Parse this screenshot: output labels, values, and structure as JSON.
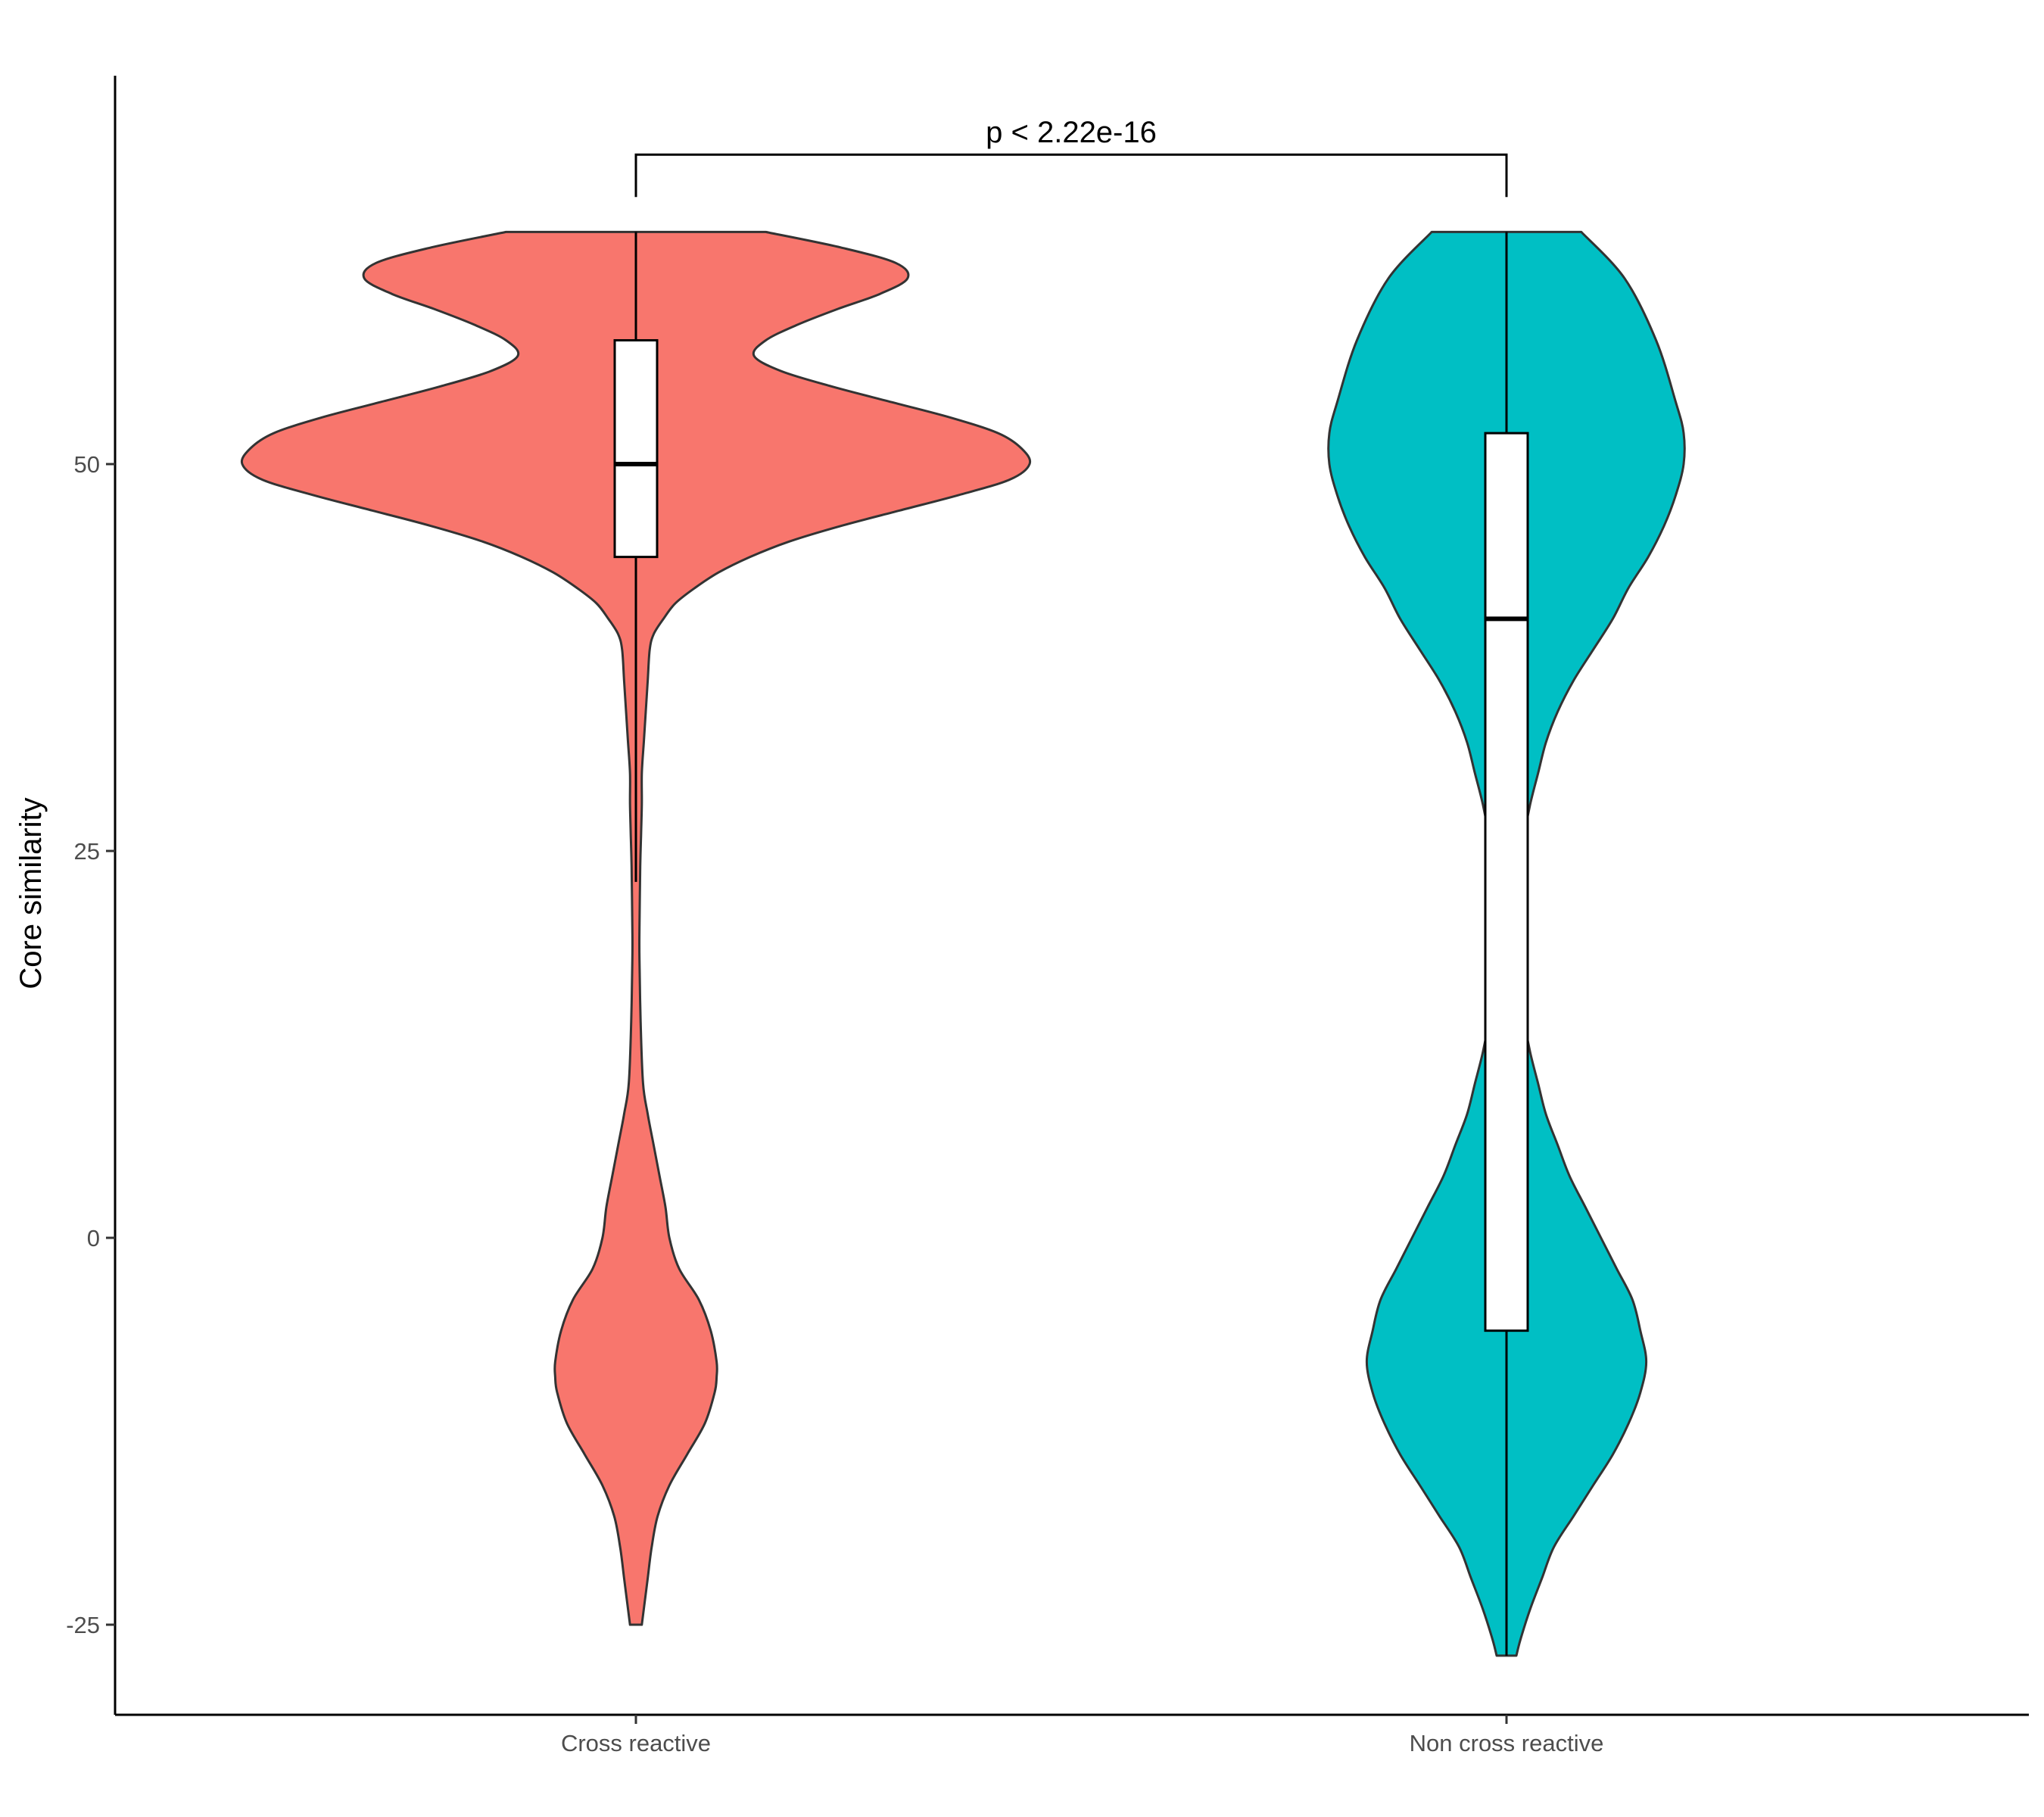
{
  "chart_data": {
    "type": "violin",
    "title": "",
    "xlabel": "",
    "ylabel": "Core similarity",
    "ylim": [
      -31,
      65
    ],
    "yticks": [
      -25,
      0,
      25,
      50
    ],
    "categories": [
      "Cross reactive",
      "Non cross reactive"
    ],
    "grid": false,
    "legend": "none",
    "series": [
      {
        "category": "Cross reactive",
        "color": "#F8766D",
        "box": {
          "min": 23,
          "q1": 44,
          "median": 50,
          "q3": 58,
          "max": 65
        },
        "density": [
          [
            65,
            0.33
          ],
          [
            64,
            0.52
          ],
          [
            63,
            0.66
          ],
          [
            62,
            0.69
          ],
          [
            61,
            0.62
          ],
          [
            60,
            0.51
          ],
          [
            59,
            0.41
          ],
          [
            58,
            0.33
          ],
          [
            57,
            0.3
          ],
          [
            56,
            0.37
          ],
          [
            55,
            0.5
          ],
          [
            54,
            0.65
          ],
          [
            53,
            0.8
          ],
          [
            52,
            0.92
          ],
          [
            51,
            0.98
          ],
          [
            50,
            1.0
          ],
          [
            49,
            0.95
          ],
          [
            48,
            0.82
          ],
          [
            47,
            0.67
          ],
          [
            46,
            0.52
          ],
          [
            45,
            0.39
          ],
          [
            44,
            0.29
          ],
          [
            43,
            0.21
          ],
          [
            42,
            0.15
          ],
          [
            41,
            0.1
          ],
          [
            40,
            0.07
          ],
          [
            39,
            0.045
          ],
          [
            38,
            0.035
          ],
          [
            36,
            0.03
          ],
          [
            34,
            0.025
          ],
          [
            32,
            0.02
          ],
          [
            30,
            0.015
          ],
          [
            28,
            0.015
          ],
          [
            26,
            0.013
          ],
          [
            24,
            0.011
          ],
          [
            20,
            0.009
          ],
          [
            18,
            0.009
          ],
          [
            14,
            0.012
          ],
          [
            10,
            0.018
          ],
          [
            8,
            0.03
          ],
          [
            6,
            0.045
          ],
          [
            4,
            0.06
          ],
          [
            2,
            0.075
          ],
          [
            0,
            0.085
          ],
          [
            -2,
            0.11
          ],
          [
            -4,
            0.16
          ],
          [
            -6,
            0.19
          ],
          [
            -8,
            0.205
          ],
          [
            -9,
            0.205
          ],
          [
            -10,
            0.2
          ],
          [
            -12,
            0.175
          ],
          [
            -14,
            0.13
          ],
          [
            -16,
            0.085
          ],
          [
            -18,
            0.055
          ],
          [
            -20,
            0.04
          ],
          [
            -22,
            0.03
          ],
          [
            -24,
            0.02
          ],
          [
            -25,
            0.015
          ]
        ]
      },
      {
        "category": "Non cross reactive",
        "color": "#00BFC4",
        "box": {
          "min": -27,
          "q1": -6,
          "median": 40,
          "q3": 52,
          "max": 65
        },
        "density": [
          [
            65,
            0.19
          ],
          [
            62,
            0.3
          ],
          [
            58,
            0.38
          ],
          [
            54,
            0.43
          ],
          [
            52,
            0.45
          ],
          [
            50,
            0.45
          ],
          [
            48,
            0.43
          ],
          [
            46,
            0.4
          ],
          [
            44,
            0.36
          ],
          [
            42,
            0.31
          ],
          [
            40,
            0.27
          ],
          [
            38,
            0.22
          ],
          [
            36,
            0.17
          ],
          [
            34,
            0.13
          ],
          [
            32,
            0.1
          ],
          [
            30,
            0.08
          ],
          [
            28,
            0.06
          ],
          [
            26,
            0.045
          ],
          [
            24,
            0.035
          ],
          [
            22,
            0.03
          ],
          [
            20,
            0.03
          ],
          [
            18,
            0.03
          ],
          [
            16,
            0.035
          ],
          [
            14,
            0.045
          ],
          [
            12,
            0.06
          ],
          [
            10,
            0.08
          ],
          [
            8,
            0.1
          ],
          [
            6,
            0.13
          ],
          [
            4,
            0.16
          ],
          [
            2,
            0.2
          ],
          [
            0,
            0.24
          ],
          [
            -2,
            0.28
          ],
          [
            -4,
            0.32
          ],
          [
            -6,
            0.34
          ],
          [
            -8,
            0.355
          ],
          [
            -10,
            0.34
          ],
          [
            -12,
            0.31
          ],
          [
            -14,
            0.27
          ],
          [
            -16,
            0.22
          ],
          [
            -18,
            0.17
          ],
          [
            -20,
            0.12
          ],
          [
            -22,
            0.09
          ],
          [
            -24,
            0.06
          ],
          [
            -26,
            0.035
          ],
          [
            -27,
            0.025
          ]
        ]
      }
    ],
    "comparison": {
      "from": "Cross reactive",
      "to": "Non cross reactive",
      "y": 70,
      "label": "p < 2.22e-16"
    }
  }
}
